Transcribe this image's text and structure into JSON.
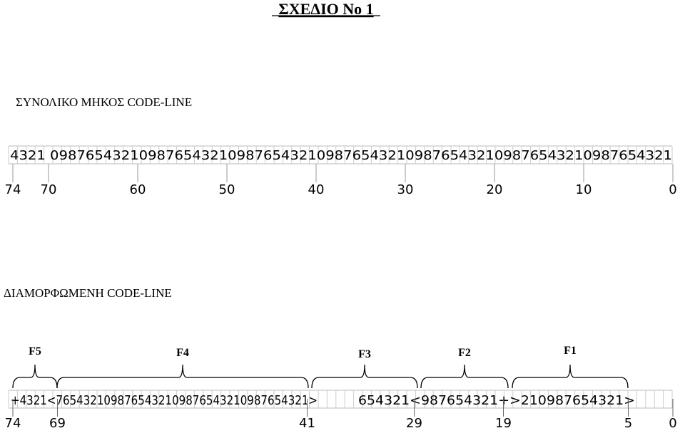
{
  "title": "ΣΧΕΔΙΟ Νο 1",
  "total": {
    "heading": "ΣΥΝΟΛΙΚΟ ΜΗΚΟΣ CODE-LINE",
    "code_line": "4321 0987654321098765432109876543210987654321098765432109876543210987654321",
    "positions": [
      74,
      70,
      60,
      50,
      40,
      30,
      20,
      10,
      0
    ]
  },
  "formatted": {
    "heading": "ΔΙΑΜΟΡΦΩΜΕΝΗ CODE-LINE",
    "fields": [
      "F5",
      "F4",
      "F3",
      "F2",
      "F1"
    ],
    "segments": [
      "+4321<7654321098765432109876543210987654321>",
      "654321<987654321+>210987654321>"
    ],
    "positions": [
      74,
      69,
      41,
      29,
      19,
      5,
      0
    ]
  }
}
